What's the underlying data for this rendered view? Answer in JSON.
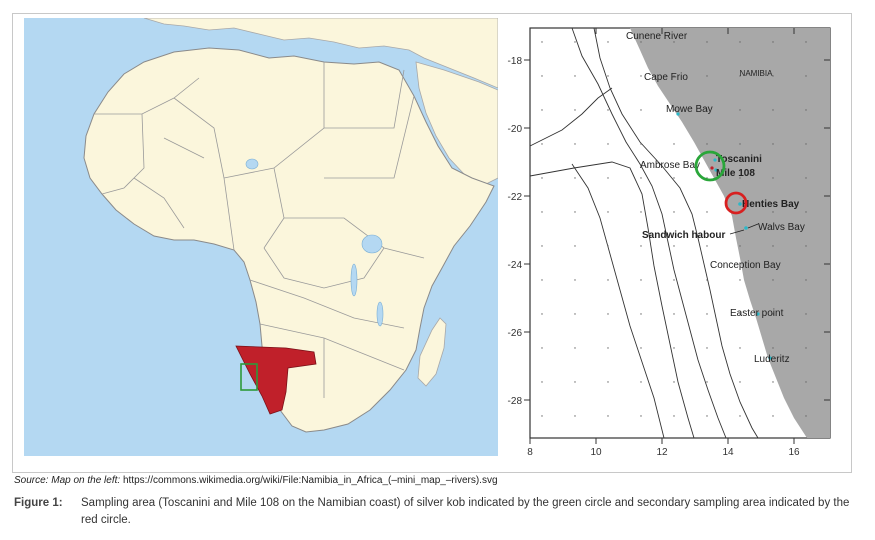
{
  "left_map": {
    "highlight_color": "#c0202a",
    "sampling_box_color": "#2e9a3a"
  },
  "right_map": {
    "y_ticks": [
      "-18",
      "-20",
      "-22",
      "-24",
      "-26",
      "-28"
    ],
    "x_ticks": [
      "8",
      "10",
      "12",
      "14",
      "16"
    ],
    "country_label": "NAMIBIA",
    "places": [
      {
        "id": "cunene-river",
        "label": "Cunene River"
      },
      {
        "id": "cape-frio",
        "label": "Cape Frio"
      },
      {
        "id": "mowe-bay",
        "label": "Mowe Bay"
      },
      {
        "id": "ambrose-bay",
        "label": "Ambrose Bay"
      },
      {
        "id": "toscanini",
        "label": "Toscanini"
      },
      {
        "id": "mile-108",
        "label": "Mile 108"
      },
      {
        "id": "henties-bay",
        "label": "Henties Bay"
      },
      {
        "id": "sandwich-harbour",
        "label": "Sandwich habour"
      },
      {
        "id": "walvis-bay",
        "label": "Walvs Bay"
      },
      {
        "id": "conception-bay",
        "label": "Conception Bay"
      },
      {
        "id": "easter-point",
        "label": "Easter point"
      },
      {
        "id": "luderitz",
        "label": "Luderitz"
      }
    ],
    "primary_circle_color": "#2aa63a",
    "secondary_circle_color": "#d82020"
  },
  "source": {
    "prefix": "Source: Map on the left:",
    "url": "https://commons.wikimedia.org/wiki/File:Namibia_in_Africa_(–mini_map_–rivers).svg"
  },
  "caption": {
    "label": "Figure 1:",
    "text": "Sampling area (Toscanini and Mile 108 on the Namibian coast) of silver kob indicated by the green circle and secondary sampling area indicated by the red circle."
  }
}
